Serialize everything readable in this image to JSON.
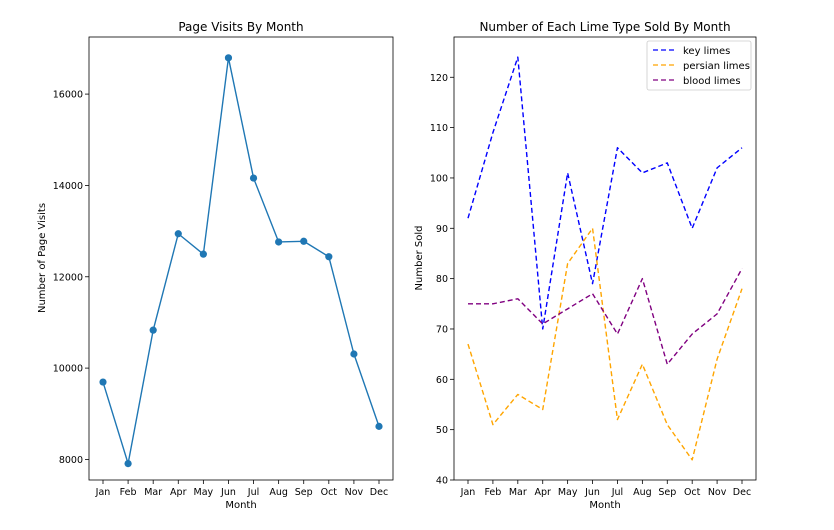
{
  "chart_data": [
    {
      "type": "line",
      "title": "Page Visits By Month",
      "xlabel": "Month",
      "ylabel": "Number of Page Visits",
      "categories": [
        "Jan",
        "Feb",
        "Mar",
        "Apr",
        "May",
        "Jun",
        "Jul",
        "Aug",
        "Sep",
        "Oct",
        "Nov",
        "Dec"
      ],
      "series": [
        {
          "name": "",
          "color": "#1f77b4",
          "linestyle": "solid",
          "marker": "circle",
          "values": [
            9695,
            7909,
            10831,
            12942,
            12495,
            16794,
            14161,
            12762,
            12777,
            12439,
            10309,
            8724
          ]
        }
      ],
      "ylim": [
        7550,
        17250
      ],
      "yticks": [
        8000,
        10000,
        12000,
        14000,
        16000
      ],
      "ytick_labels": [
        "8000",
        "10000",
        "12000",
        "14000",
        "16000"
      ],
      "grid": false,
      "legend": "none"
    },
    {
      "type": "line",
      "title": "Number of Each Lime Type Sold By Month",
      "xlabel": "Month",
      "ylabel": "Number Sold",
      "categories": [
        "Jan",
        "Feb",
        "Mar",
        "Apr",
        "May",
        "Jun",
        "Jul",
        "Aug",
        "Sep",
        "Oct",
        "Nov",
        "Dec"
      ],
      "series": [
        {
          "name": "key limes",
          "color": "#0000ff",
          "linestyle": "dashed",
          "values": [
            92,
            109,
            124,
            70,
            101,
            79,
            106,
            101,
            103,
            90,
            102,
            106
          ]
        },
        {
          "name": "persian limes",
          "color": "#ffa500",
          "linestyle": "dashed",
          "values": [
            67,
            51,
            57,
            54,
            83,
            90,
            52,
            63,
            51,
            44,
            64,
            78
          ]
        },
        {
          "name": "blood limes",
          "color": "#800080",
          "linestyle": "dashed",
          "values": [
            75,
            75,
            76,
            71,
            74,
            77,
            69,
            80,
            63,
            69,
            73,
            82
          ]
        }
      ],
      "ylim": [
        40,
        128
      ],
      "yticks": [
        40,
        50,
        60,
        70,
        80,
        90,
        100,
        110,
        120
      ],
      "ytick_labels": [
        "40",
        "50",
        "60",
        "70",
        "80",
        "90",
        "100",
        "110",
        "120"
      ],
      "grid": false,
      "legend": "top-right"
    }
  ]
}
